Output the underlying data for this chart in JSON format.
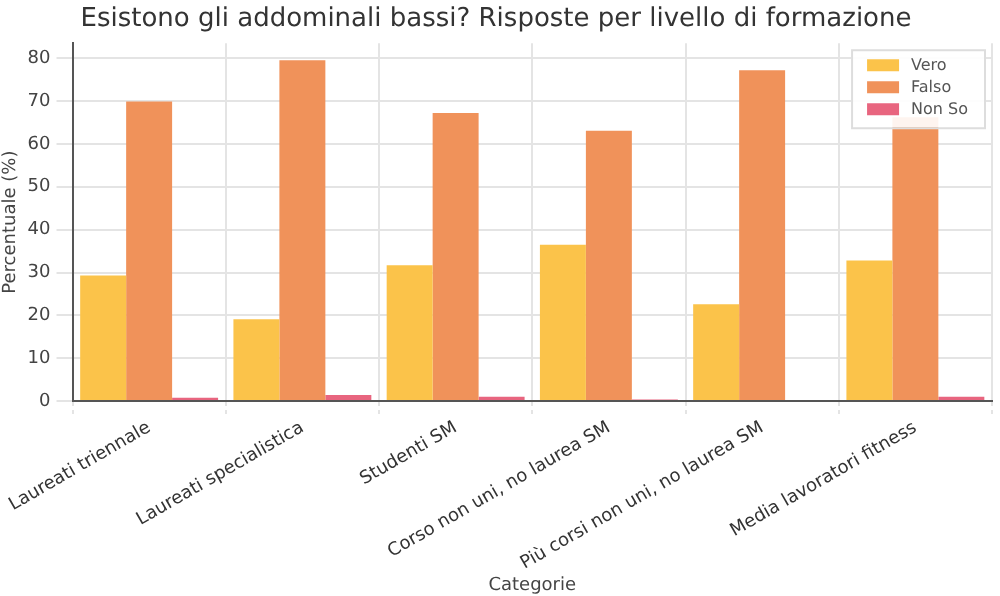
{
  "chart_data": {
    "type": "bar",
    "title": "Esistono gli addominali bassi? Risposte per livello di formazione",
    "xlabel": "Categorie",
    "ylabel": "Percentuale (%)",
    "categories": [
      "Laureati triennale",
      "Laureati specialistica",
      "Studenti SM",
      "Corso non uni, no laurea SM",
      "Più corsi non uni, no laurea SM",
      "Media lavoratori fitness"
    ],
    "series": [
      {
        "name": "Vero",
        "color": "#fbc34a",
        "values": [
          29.3,
          19.1,
          31.7,
          36.5,
          22.6,
          32.8
        ]
      },
      {
        "name": "Falso",
        "color": "#f0925a",
        "values": [
          69.9,
          79.5,
          67.2,
          63.1,
          77.2,
          66.2
        ]
      },
      {
        "name": "Non So",
        "color": "#e8657f",
        "values": [
          0.8,
          1.4,
          1.0,
          0.4,
          0,
          1.0
        ]
      }
    ],
    "ylim": [
      0,
      83.5
    ],
    "yticks": [
      0,
      10,
      20,
      30,
      40,
      50,
      60,
      70,
      80
    ],
    "grid": true,
    "legend": "top right"
  }
}
